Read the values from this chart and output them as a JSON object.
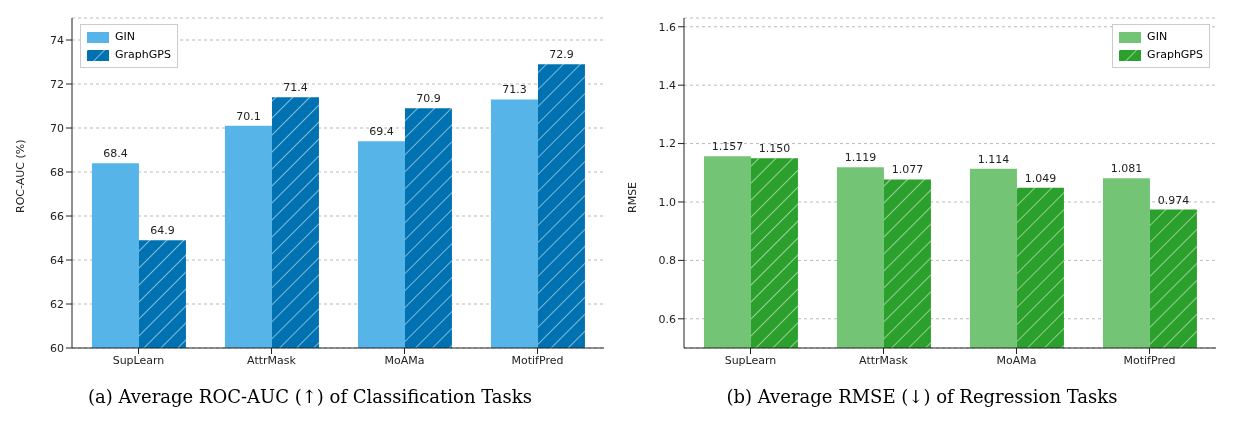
{
  "chart_data": [
    {
      "type": "bar",
      "title": "(a) Average ROC-AUC (↑) of Classification Tasks",
      "ylabel": "ROC-AUC (%)",
      "categories": [
        "SupLearn",
        "AttrMask",
        "MoAMa",
        "MotifPred"
      ],
      "series": [
        {
          "name": "GIN",
          "color": "#56b4e9",
          "values": [
            68.4,
            70.1,
            69.4,
            71.3
          ]
        },
        {
          "name": "GraphGPS",
          "color": "#0072b2",
          "values": [
            64.9,
            71.4,
            70.9,
            72.9
          ]
        }
      ],
      "ylim": [
        60,
        75
      ],
      "yticks": [
        60,
        62,
        64,
        66,
        68,
        70,
        72,
        74
      ],
      "grid": "y",
      "legend": "top left",
      "data_labels": true
    },
    {
      "type": "bar",
      "title": "(b) Average RMSE (↓) of Regression Tasks",
      "ylabel": "RMSE",
      "categories": [
        "SupLearn",
        "AttrMask",
        "MoAMa",
        "MotifPred"
      ],
      "series": [
        {
          "name": "GIN",
          "color": "#74c476",
          "values": [
            1.157,
            1.119,
            1.114,
            1.081
          ],
          "value_labels": [
            "1.157",
            "1.119",
            "1.114",
            "1.081"
          ]
        },
        {
          "name": "GraphGPS",
          "color": "#2ca02c",
          "values": [
            1.15,
            1.077,
            1.049,
            0.974
          ],
          "value_labels": [
            "1.150",
            "1.077",
            "1.049",
            "0.974"
          ]
        }
      ],
      "ylim": [
        0.5,
        1.63
      ],
      "yticks": [
        0.6,
        0.8,
        {
          "value": 1,
          "label": "1.0"
        },
        1.2,
        1.4,
        1.6
      ],
      "grid": "y",
      "legend": "top right"
    }
  ]
}
